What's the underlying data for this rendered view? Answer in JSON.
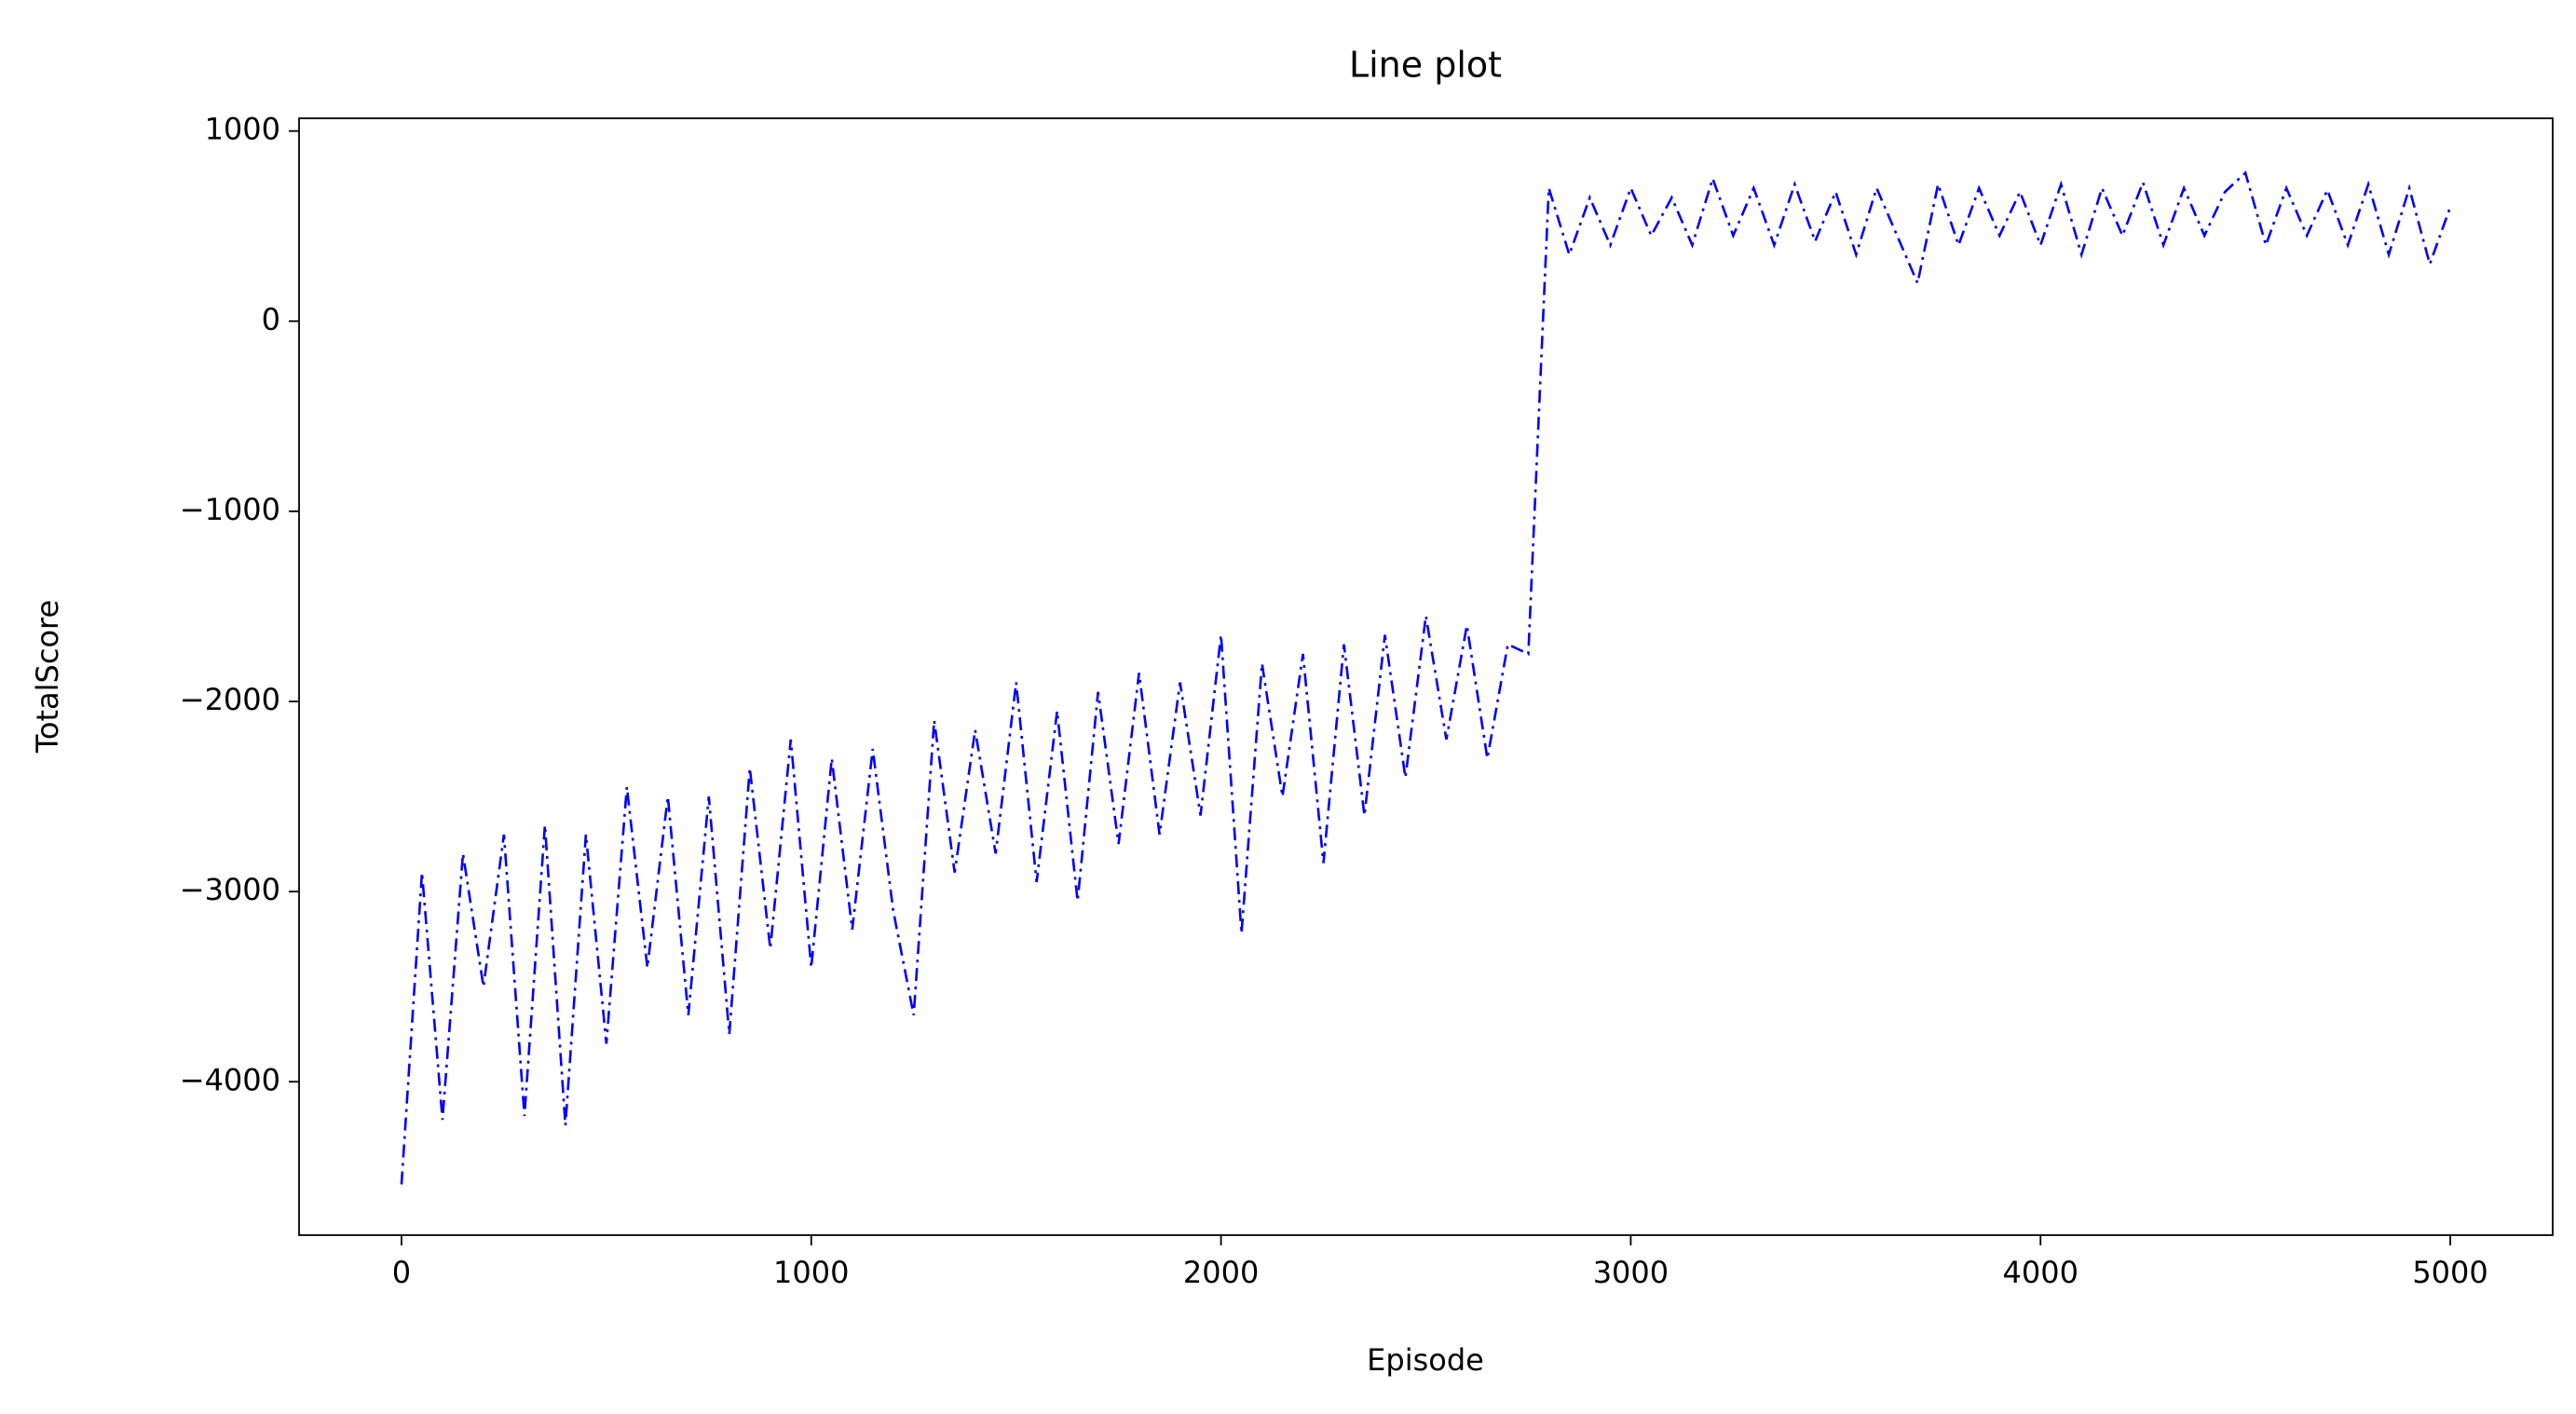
{
  "chart_data": {
    "type": "line",
    "title": "Line plot",
    "x_label": "Episode",
    "y_label": "TotalScore",
    "color": "#0000ff",
    "line_style": "dashdot",
    "x": [
      0,
      50,
      100,
      150,
      200,
      250,
      300,
      350,
      400,
      450,
      500,
      550,
      600,
      650,
      700,
      750,
      800,
      850,
      900,
      950,
      1000,
      1050,
      1100,
      1150,
      1200,
      1250,
      1300,
      1350,
      1400,
      1450,
      1500,
      1550,
      1600,
      1650,
      1700,
      1750,
      1800,
      1850,
      1900,
      1950,
      2000,
      2050,
      2100,
      2150,
      2200,
      2250,
      2300,
      2350,
      2400,
      2450,
      2500,
      2550,
      2600,
      2650,
      2700,
      2750,
      2800,
      2850,
      2900,
      2950,
      3000,
      3050,
      3100,
      3150,
      3200,
      3250,
      3300,
      3350,
      3400,
      3450,
      3500,
      3550,
      3600,
      3650,
      3700,
      3750,
      3800,
      3850,
      3900,
      3950,
      4000,
      4050,
      4100,
      4150,
      4200,
      4250,
      4300,
      4350,
      4400,
      4450,
      4500,
      4550,
      4600,
      4650,
      4700,
      4750,
      4800,
      4850,
      4900,
      4950,
      5000
    ],
    "values": [
      -4540,
      -2900,
      -4200,
      -2800,
      -3500,
      -2700,
      -4180,
      -2650,
      -4230,
      -2700,
      -3800,
      -2450,
      -3400,
      -2500,
      -3650,
      -2500,
      -3750,
      -2350,
      -3300,
      -2200,
      -3400,
      -2300,
      -3200,
      -2250,
      -3100,
      -3650,
      -2100,
      -2900,
      -2150,
      -2800,
      -1900,
      -2950,
      -2050,
      -3050,
      -1950,
      -2750,
      -1850,
      -2700,
      -1900,
      -2600,
      -1650,
      -3220,
      -1800,
      -2500,
      -1750,
      -2850,
      -1700,
      -2600,
      -1650,
      -2400,
      -1550,
      -2200,
      -1600,
      -2300,
      -1700,
      -1750,
      700,
      350,
      650,
      400,
      700,
      450,
      650,
      400,
      750,
      450,
      700,
      400,
      720,
      420,
      680,
      350,
      700,
      450,
      200,
      720,
      400,
      700,
      450,
      680,
      400,
      720,
      350,
      700,
      450,
      730,
      400,
      700,
      450,
      680,
      780,
      400,
      700,
      450,
      690,
      400,
      720,
      350,
      700,
      300,
      600
    ],
    "xlim": [
      -250,
      5250
    ],
    "ylim": [
      -4807,
      1067
    ],
    "xticks": [
      0,
      1000,
      2000,
      3000,
      4000,
      5000
    ],
    "yticks": [
      {
        "value": -4000,
        "label": "−4000"
      },
      {
        "value": -3000,
        "label": "−3000"
      },
      {
        "value": -2000,
        "label": "−2000"
      },
      {
        "value": -1000,
        "label": "−1000"
      },
      0,
      1000
    ]
  }
}
